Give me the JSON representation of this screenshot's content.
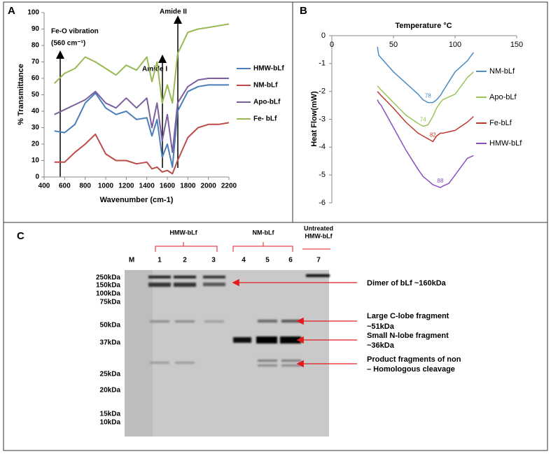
{
  "chart_data": [
    {
      "type": "line",
      "panel_label": "A",
      "x_label": "Wavenumber (cm-1)",
      "y_label": "% Transmittance",
      "x": [
        500,
        600,
        700,
        800,
        900,
        1000,
        1100,
        1200,
        1300,
        1400,
        1450,
        1500,
        1550,
        1600,
        1650,
        1700,
        1800,
        1900,
        2000,
        2100,
        2200
      ],
      "series": [
        {
          "name": "HMW-bLf",
          "color": "#4a7ebb",
          "values": [
            28,
            27,
            32,
            45,
            51,
            42,
            38,
            40,
            35,
            36,
            25,
            35,
            12,
            20,
            6,
            40,
            52,
            55,
            56,
            56,
            56
          ]
        },
        {
          "name": "NM-bLf",
          "color": "#be4b48",
          "values": [
            9,
            9,
            15,
            20,
            26,
            14,
            10,
            10,
            8,
            9,
            5,
            6,
            3,
            4,
            2,
            10,
            24,
            30,
            32,
            32,
            33
          ]
        },
        {
          "name": "Apo-bLf",
          "color": "#7d5fa0",
          "values": [
            38,
            41,
            44,
            47,
            52,
            45,
            42,
            48,
            42,
            48,
            30,
            45,
            22,
            38,
            15,
            45,
            55,
            59,
            60,
            60,
            60
          ]
        },
        {
          "name": "Fe- bLf",
          "color": "#98b954",
          "values": [
            57,
            63,
            66,
            73,
            70,
            66,
            62,
            68,
            65,
            73,
            58,
            70,
            45,
            56,
            45,
            75,
            88,
            90,
            91,
            92,
            93
          ]
        }
      ],
      "xlim": [
        400,
        2200
      ],
      "xticks": [
        400,
        600,
        800,
        1000,
        1200,
        1400,
        1600,
        1800,
        2000,
        2200
      ],
      "ylim": [
        0,
        100
      ],
      "yticks": [
        0,
        10,
        20,
        30,
        40,
        50,
        60,
        70,
        80,
        90,
        100
      ],
      "annotations": [
        "Fe-O vibration",
        "(560 cm⁻¹)",
        "Amide I",
        "Amide II"
      ],
      "legend": "right"
    },
    {
      "type": "line",
      "panel_label": "B",
      "x_label": "Temperature °C",
      "y_label": "Heat Flow(mW)",
      "x": [
        37,
        38,
        40,
        50,
        60,
        70,
        74,
        78,
        82,
        85,
        88,
        90,
        95,
        100,
        110,
        115
      ],
      "series": [
        {
          "name": "NM-bLf",
          "color": "#4a8cc4",
          "peak_label": "78",
          "values": [
            -0.4,
            -0.7,
            -0.8,
            -1.3,
            -1.7,
            -2.1,
            -2.3,
            -2.4,
            -2.4,
            -2.3,
            -2.15,
            -2.0,
            -1.65,
            -1.3,
            -0.9,
            -0.6
          ]
        },
        {
          "name": "Apo-bLf",
          "color": "#9bc45a",
          "peak_label": "74",
          "values": [
            -1.8,
            -1.85,
            -1.95,
            -2.4,
            -2.85,
            -3.15,
            -3.25,
            -3.2,
            -2.9,
            -2.6,
            -2.4,
            -2.3,
            -2.2,
            -2.1,
            -1.5,
            -1.3
          ]
        },
        {
          "name": "Fe-bLf",
          "color": "#c0392b",
          "peak_label": "82",
          "values": [
            -2.0,
            -2.05,
            -2.15,
            -2.6,
            -3.1,
            -3.5,
            -3.6,
            -3.7,
            -3.8,
            -3.6,
            -3.5,
            -3.5,
            -3.45,
            -3.4,
            -3.1,
            -2.9
          ]
        },
        {
          "name": "HMW-bLf",
          "color": "#8a4fc0",
          "peak_label": "88",
          "values": [
            -2.3,
            -2.4,
            -2.5,
            -3.3,
            -4.1,
            -4.8,
            -5.05,
            -5.2,
            -5.35,
            -5.4,
            -5.45,
            -5.4,
            -5.3,
            -5.0,
            -4.4,
            -4.3
          ]
        }
      ],
      "xlim": [
        0,
        150
      ],
      "xticks": [
        0,
        50,
        100,
        150
      ],
      "ylim": [
        -6,
        0
      ],
      "yticks": [
        0,
        -1,
        -2,
        -3,
        -4,
        -5,
        -6
      ],
      "legend": "right"
    }
  ],
  "gel": {
    "panel_label": "C",
    "groups": [
      "HMW-bLf",
      "NM-bLf",
      [
        "Untreated",
        "HMW-bLf"
      ]
    ],
    "lanes": [
      "M",
      "1",
      "2",
      "3",
      "4",
      "5",
      "6",
      "7"
    ],
    "markers": [
      "250kDa",
      "150kDa",
      "100kDa",
      "75kDa",
      "50kDa",
      "37kDa",
      "25kDa",
      "20kDa",
      "15kDa",
      "10kDa"
    ],
    "annotations": [
      [
        "Dimer of bLf ~160kDa"
      ],
      [
        "Large C-lobe fragment",
        "~51kDa"
      ],
      [
        "Small N-lobe fragment",
        "~36kDa"
      ],
      [
        "Product fragments of non",
        "– Homologous cleavage"
      ]
    ]
  }
}
